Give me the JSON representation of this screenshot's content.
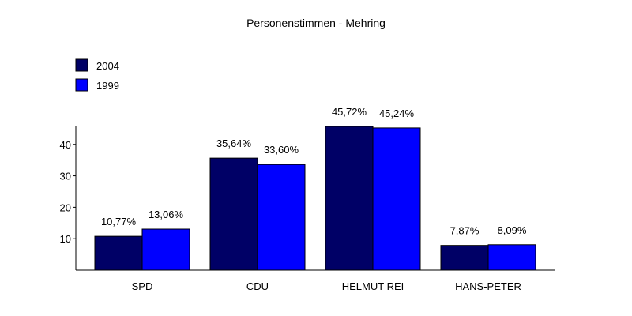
{
  "chart_data": {
    "type": "bar",
    "title": "Personenstimmen - Mehring",
    "categories": [
      "SPD",
      "CDU",
      "HELMUT REI",
      "HANS-PETER"
    ],
    "series": [
      {
        "name": "2004",
        "color": "#000066",
        "values": [
          10.77,
          35.64,
          45.72,
          7.87
        ],
        "labels": [
          "10,77%",
          "35,64%",
          "45,72%",
          "7,87%"
        ]
      },
      {
        "name": "1999",
        "color": "#0000ff",
        "values": [
          13.06,
          33.6,
          45.24,
          8.09
        ],
        "labels": [
          "13,06%",
          "33,60%",
          "45,24%",
          "8,09%"
        ]
      }
    ],
    "yticks": [
      10,
      20,
      30,
      40
    ],
    "ytick_labels": [
      "10",
      "20",
      "30",
      "40"
    ],
    "ylim": [
      0,
      45.72
    ],
    "xlabel": "",
    "ylabel": "",
    "grid": false,
    "legend_position": "top-left"
  }
}
